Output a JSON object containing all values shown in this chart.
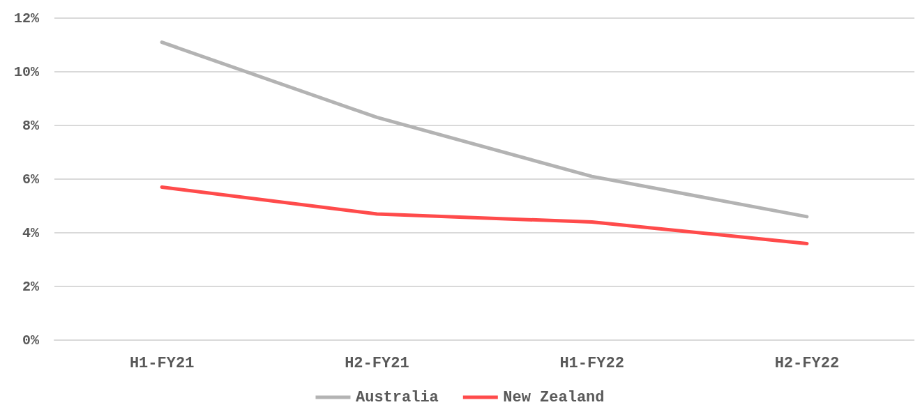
{
  "chart_data": {
    "type": "line",
    "categories": [
      "H1-FY21",
      "H2-FY21",
      "H1-FY22",
      "H2-FY22"
    ],
    "series": [
      {
        "name": "Australia",
        "color": "#b3b3b3",
        "values": [
          11.1,
          8.3,
          6.1,
          4.6
        ]
      },
      {
        "name": "New Zealand",
        "color": "#ff4b4b",
        "values": [
          5.7,
          4.7,
          4.4,
          3.6
        ]
      }
    ],
    "ylim": [
      0,
      12
    ],
    "yticks": [
      {
        "value": 0,
        "label": "0%"
      },
      {
        "value": 2,
        "label": "2%"
      },
      {
        "value": 4,
        "label": "4%"
      },
      {
        "value": 6,
        "label": "6%"
      },
      {
        "value": 8,
        "label": "8%"
      },
      {
        "value": 10,
        "label": "10%"
      },
      {
        "value": 12,
        "label": "12%"
      }
    ],
    "grid": "y",
    "legend": "bottom",
    "marker": "none",
    "line_style": "solid"
  }
}
